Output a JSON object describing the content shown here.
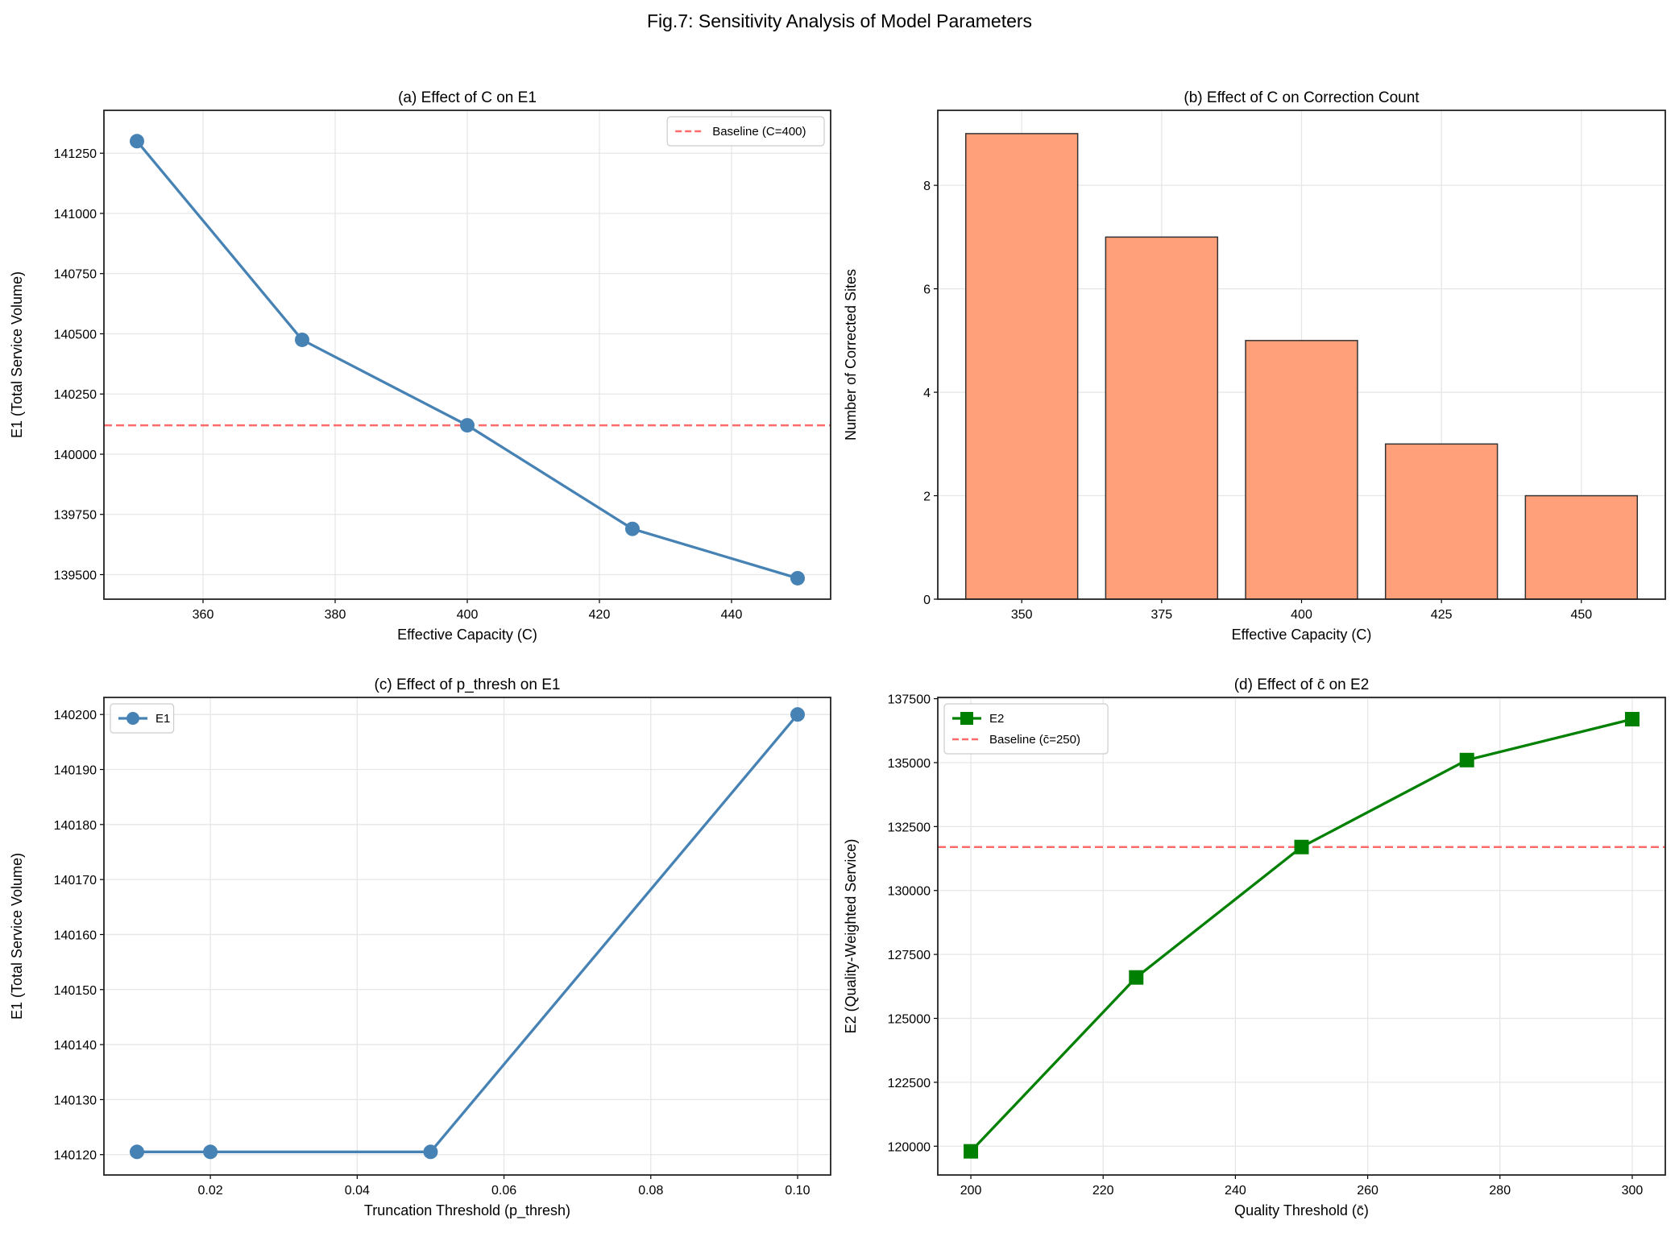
{
  "suptitle": "Fig.7: Sensitivity Analysis of Model Parameters",
  "chart_data": [
    {
      "type": "line",
      "title": "(a) Effect of C on E1",
      "xlabel": "Effective Capacity (C)",
      "ylabel": "E1 (Total Service Volume)",
      "x": [
        350,
        375,
        400,
        425,
        450
      ],
      "series": [
        {
          "values": [
            141300,
            140475,
            140120,
            139690,
            139485
          ],
          "color": "#4682b4",
          "marker": "circle"
        }
      ],
      "baseline": {
        "name": "Baseline (C=400)",
        "value": 140120,
        "color": "#ff6b6b"
      },
      "xlim": [
        345,
        455
      ],
      "ylim": [
        139398,
        141428
      ],
      "xticks": [
        360,
        380,
        400,
        420,
        440
      ],
      "yticks": [
        139500,
        139750,
        140000,
        140250,
        140500,
        140750,
        141000,
        141250
      ],
      "grid": true,
      "legend": "top-right"
    },
    {
      "type": "bar",
      "title": "(b) Effect of C on Correction Count",
      "xlabel": "Effective Capacity (C)",
      "ylabel": "Number of Corrected Sites",
      "categories": [
        "350",
        "375",
        "400",
        "425",
        "450"
      ],
      "values": [
        9,
        7,
        5,
        3,
        2
      ],
      "color": "#ffa07a",
      "ylim": [
        0,
        9.45
      ],
      "yticks": [
        0,
        2,
        4,
        6,
        8
      ],
      "grid": true
    },
    {
      "type": "line",
      "title": "(c) Effect of p_thresh on E1",
      "xlabel": "Truncation Threshold (p_thresh)",
      "ylabel": "E1 (Total Service Volume)",
      "x": [
        0.01,
        0.02,
        0.05,
        0.1
      ],
      "series": [
        {
          "name": "E1",
          "values": [
            140120.5,
            140120.5,
            140120.5,
            140200
          ],
          "color": "#4682b4",
          "marker": "circle"
        }
      ],
      "xlim": [
        0.0055,
        0.1045
      ],
      "ylim": [
        140116.3,
        140203.1
      ],
      "xticks": [
        0.02,
        0.04,
        0.06,
        0.08,
        0.1
      ],
      "xtick_labels": [
        "0.02",
        "0.04",
        "0.06",
        "0.08",
        "0.10"
      ],
      "yticks": [
        140120,
        140130,
        140140,
        140150,
        140160,
        140170,
        140180,
        140190,
        140200
      ],
      "grid": true,
      "legend": "top-left"
    },
    {
      "type": "line",
      "title": "(d) Effect of c̄ on E2",
      "xlabel": "Quality Threshold (c̄)",
      "ylabel": "E2 (Quality-Weighted Service)",
      "x": [
        200,
        225,
        250,
        275,
        300
      ],
      "series": [
        {
          "name": "E2",
          "values": [
            119800,
            126600,
            131700,
            135100,
            136700
          ],
          "color": "#008000",
          "marker": "square"
        }
      ],
      "baseline": {
        "name": "Baseline (c̄=250)",
        "value": 131700,
        "color": "#ff6b6b"
      },
      "xlim": [
        195,
        305
      ],
      "ylim": [
        118875,
        137550
      ],
      "xticks": [
        200,
        220,
        240,
        260,
        280,
        300
      ],
      "yticks": [
        120000,
        122500,
        125000,
        127500,
        130000,
        132500,
        135000,
        137500
      ],
      "grid": true,
      "legend": "top-left"
    }
  ]
}
